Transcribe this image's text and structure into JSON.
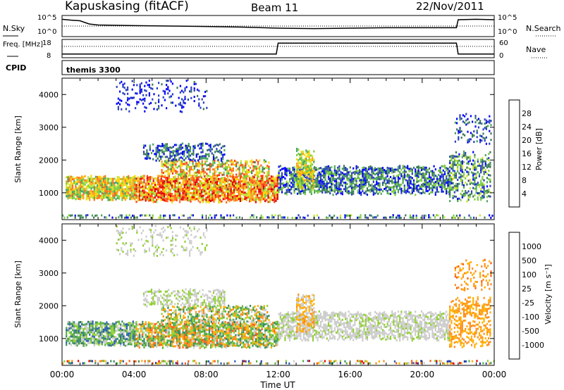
{
  "header": {
    "station": "Kapuskasing (fitACF)",
    "beam": "Beam 11",
    "date": "22/Nov/2011",
    "cpid_label": "CPID",
    "cpid_value": "themis 3300"
  },
  "chart_data": [
    {
      "type": "line",
      "panel": "noise",
      "left_label": "N.Sky",
      "right_label": "N.Search",
      "left_ticks": [
        "10^5",
        "10^0"
      ],
      "right_ticks": [
        "10^5",
        "10^0"
      ],
      "series": [
        {
          "name": "N.Sky",
          "style": "solid",
          "x": [
            0.0,
            0.5,
            1.0,
            1.5,
            2.0,
            4.0,
            6.0,
            8.0,
            10.0,
            12.0,
            14.0,
            16.0,
            18.0,
            20.0,
            21.9,
            22.0,
            23.0,
            24.0
          ],
          "y_frac": [
            0.82,
            0.78,
            0.75,
            0.6,
            0.55,
            0.52,
            0.5,
            0.48,
            0.45,
            0.4,
            0.38,
            0.4,
            0.42,
            0.42,
            0.42,
            0.8,
            0.82,
            0.8
          ]
        },
        {
          "name": "N.Search",
          "style": "dotted",
          "y_frac_const": 0.5
        }
      ]
    },
    {
      "type": "line",
      "panel": "frequency",
      "left_label": "Freq. [MHz]",
      "right_label": "Nave",
      "left_ticks": [
        "18",
        "8"
      ],
      "right_ticks": [
        "60",
        "0"
      ],
      "series": [
        {
          "name": "Freq",
          "style": "solid",
          "x": [
            0.0,
            11.9,
            12.0,
            21.9,
            22.0,
            24.0
          ],
          "y_frac": [
            0.2,
            0.2,
            0.8,
            0.8,
            0.2,
            0.2
          ]
        },
        {
          "name": "Nave",
          "style": "dotted",
          "y_frac_const": 0.62
        }
      ]
    },
    {
      "type": "heatmap",
      "panel": "power",
      "ylabel": "Slant Range [km]",
      "yticks": [
        1000,
        2000,
        3000,
        4000
      ],
      "ylim": [
        180,
        4500
      ],
      "xlim": [
        0,
        24
      ],
      "colorbar": {
        "label": "Power [dB]",
        "ticks": [
          "28",
          "24",
          "20",
          "16",
          "12",
          "8",
          "4"
        ],
        "colors": [
          "#0000ff",
          "#2a3fc0",
          "#3c7a55",
          "#4aa35a",
          "#7ccd3f",
          "#c8e632",
          "#ffd700",
          "#ff9f1a",
          "#ff6a1a",
          "#ff3a10",
          "#e00000"
        ]
      },
      "bands": [
        {
          "x": [
            0.0,
            24.0
          ],
          "r": [
            220,
            340
          ],
          "level": [
            0.0,
            0.5
          ],
          "density": 0.35
        },
        {
          "x": [
            0.2,
            4.0
          ],
          "r": [
            800,
            1500
          ],
          "level": [
            0.3,
            0.8
          ],
          "density": 0.9
        },
        {
          "x": [
            4.0,
            12.0
          ],
          "r": [
            750,
            1500
          ],
          "level": [
            0.4,
            1.0
          ],
          "density": 0.9
        },
        {
          "x": [
            5.5,
            11.5
          ],
          "r": [
            1500,
            2000
          ],
          "level": [
            0.25,
            0.9
          ],
          "density": 0.6
        },
        {
          "x": [
            4.5,
            9.0
          ],
          "r": [
            2000,
            2500
          ],
          "level": [
            0.0,
            0.35
          ],
          "density": 0.5
        },
        {
          "x": [
            12.0,
            21.5
          ],
          "r": [
            1000,
            1800
          ],
          "level": [
            0.0,
            0.45
          ],
          "density": 0.7
        },
        {
          "x": [
            13.0,
            14.0
          ],
          "r": [
            1200,
            2300
          ],
          "level": [
            0.3,
            0.7
          ],
          "density": 0.7
        },
        {
          "x": [
            3.0,
            8.0
          ],
          "r": [
            3500,
            4400
          ],
          "level": [
            0.0,
            0.2
          ],
          "density": 0.2
        },
        {
          "x": [
            21.5,
            23.8
          ],
          "r": [
            800,
            2200
          ],
          "level": [
            0.05,
            0.55
          ],
          "density": 0.5
        },
        {
          "x": [
            21.8,
            23.8
          ],
          "r": [
            2500,
            3400
          ],
          "level": [
            0.0,
            0.3
          ],
          "density": 0.25
        }
      ]
    },
    {
      "type": "heatmap",
      "panel": "velocity",
      "ylabel": "Slant Range [km]",
      "xlabel": "Time UT",
      "xticks": [
        "00:00",
        "04:00",
        "08:00",
        "12:00",
        "16:00",
        "20:00",
        "00:00"
      ],
      "yticks": [
        1000,
        2000,
        3000,
        4000
      ],
      "ylim": [
        180,
        4500
      ],
      "xlim": [
        0,
        24
      ],
      "colorbar": {
        "label": "Velocity [m s⁻¹]",
        "ticks": [
          "1000",
          "500",
          "100",
          "25",
          "-25",
          "-100",
          "-500",
          "-1000"
        ],
        "colors": [
          "#2233aa",
          "#2c5fb0",
          "#3b8a60",
          "#55b040",
          "#8fd030",
          "#cccccc",
          "#ffb000",
          "#ff8c1a",
          "#ff5c10",
          "#e00000"
        ]
      },
      "bands": [
        {
          "x": [
            0.0,
            24.0
          ],
          "r": [
            220,
            340
          ],
          "level": [
            0.0,
            1.0
          ],
          "density": 0.3
        },
        {
          "x": [
            0.2,
            4.0
          ],
          "r": [
            800,
            1500
          ],
          "level": [
            0.1,
            0.6
          ],
          "density": 0.85
        },
        {
          "x": [
            4.0,
            12.0
          ],
          "r": [
            750,
            1500
          ],
          "level": [
            0.2,
            0.85
          ],
          "density": 0.85
        },
        {
          "x": [
            5.5,
            11.5
          ],
          "r": [
            1500,
            2000
          ],
          "level": [
            0.2,
            0.8
          ],
          "density": 0.6
        },
        {
          "x": [
            4.5,
            9.0
          ],
          "r": [
            2000,
            2500
          ],
          "level": [
            0.45,
            0.6
          ],
          "density": 0.5
        },
        {
          "x": [
            12.0,
            21.5
          ],
          "r": [
            1000,
            1800
          ],
          "level": [
            0.48,
            0.58
          ],
          "density": 0.7
        },
        {
          "x": [
            13.0,
            14.0
          ],
          "r": [
            1200,
            2300
          ],
          "level": [
            0.5,
            0.75
          ],
          "density": 0.7
        },
        {
          "x": [
            3.0,
            8.0
          ],
          "r": [
            3500,
            4400
          ],
          "level": [
            0.45,
            0.6
          ],
          "density": 0.2
        },
        {
          "x": [
            21.5,
            23.8
          ],
          "r": [
            800,
            2200
          ],
          "level": [
            0.6,
            0.8
          ],
          "density": 0.5
        },
        {
          "x": [
            21.8,
            23.8
          ],
          "r": [
            2500,
            3400
          ],
          "level": [
            0.6,
            0.85
          ],
          "density": 0.25
        }
      ]
    }
  ]
}
